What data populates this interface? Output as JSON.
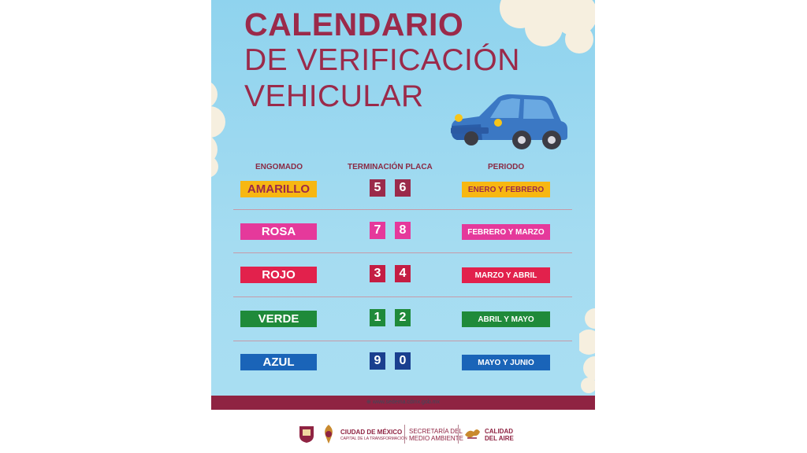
{
  "poster": {
    "title_line1": "CALENDARIO",
    "title_line2": "DE VERIFICACIÓN",
    "title_line3": "VEHICULAR",
    "headers": {
      "sticker": "ENGOMADO",
      "plate": "TERMINACIÓN PLACA",
      "period": "PERIODO"
    },
    "rows": [
      {
        "sticker": "AMARILLO",
        "digits": [
          "5",
          "6"
        ],
        "period": "ENERO Y FEBRERO",
        "color": "#f7b712",
        "text_color": "#9b2a4a"
      },
      {
        "sticker": "ROSA",
        "digits": [
          "7",
          "8"
        ],
        "period": "FEBRERO Y MARZO",
        "color": "#e5399b",
        "text_color": "#ffffff"
      },
      {
        "sticker": "ROJO",
        "digits": [
          "3",
          "4"
        ],
        "period": "MARZO Y ABRIL",
        "color": "#e2214c",
        "text_color": "#ffffff"
      },
      {
        "sticker": "VERDE",
        "digits": [
          "1",
          "2"
        ],
        "period": "ABRIL Y MAYO",
        "color": "#1f8a3a",
        "text_color": "#ffffff"
      },
      {
        "sticker": "AZUL",
        "digits": [
          "9",
          "0"
        ],
        "period": "MAYO Y JUNIO",
        "color": "#1a64b8",
        "text_color": "#ffffff"
      }
    ],
    "digit_colors": [
      "#9b2a4a",
      "#e5399b",
      "#c41d43",
      "#1f8a3a",
      "#1a3f8f"
    ],
    "url": "www.sedema.cdmx.gob.mx"
  },
  "logos": {
    "cdmx_title": "CIUDAD DE MÉXICO",
    "cdmx_sub": "CAPITAL DE LA TRANSFORMACIÓN",
    "sedema_line1": "SECRETARÍA DEL",
    "sedema_line2": "MEDIO AMBIENTE",
    "calidad_line1": "CALIDAD",
    "calidad_line2": "DEL AIRE"
  }
}
